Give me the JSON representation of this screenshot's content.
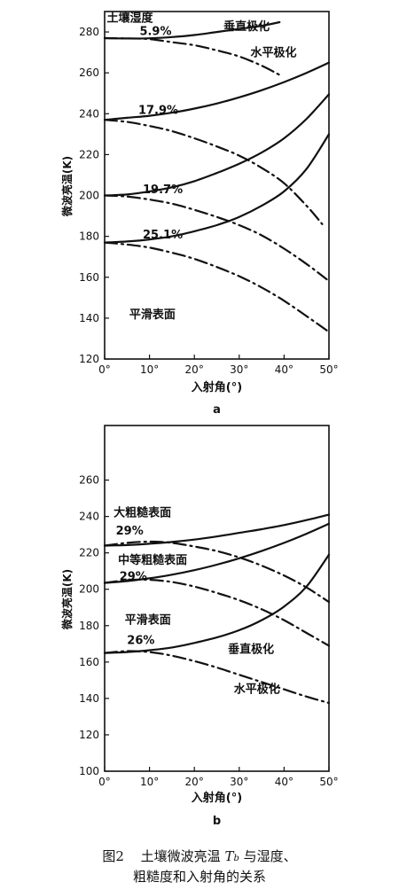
{
  "chart_data": [
    {
      "panel_label": "a",
      "type": "line",
      "xlabel": "入射角(°)",
      "ylabel": "微波亮温(K)",
      "xlim": [
        0,
        50
      ],
      "ylim": [
        120,
        290
      ],
      "xticks": [
        0,
        10,
        20,
        30,
        40,
        50
      ],
      "xtick_labels": [
        "0°",
        "10°",
        "20°",
        "30°",
        "40°",
        "50°"
      ],
      "yticks": [
        120,
        140,
        160,
        180,
        200,
        220,
        240,
        260,
        280
      ],
      "ytick_labels": [
        "120",
        "140",
        "160",
        "180",
        "200",
        "220",
        "240",
        "260",
        "280"
      ],
      "grid": false,
      "annotations": [
        {
          "text": "土壤湿度",
          "x": 0.5,
          "y": 285
        },
        {
          "text": "垂直极化",
          "x": 26.5,
          "y": 281
        },
        {
          "text": "水平极化",
          "x": 32.5,
          "y": 268
        },
        {
          "text": "5.9%",
          "x": 7.8,
          "y": 278.5
        },
        {
          "text": "17.9%",
          "x": 7.5,
          "y": 240
        },
        {
          "text": "19.7%",
          "x": 8.5,
          "y": 201
        },
        {
          "text": "25.1%",
          "x": 8.5,
          "y": 179
        },
        {
          "text": "平滑表面",
          "x": 5.5,
          "y": 140
        }
      ],
      "series": [
        {
          "style": "solid",
          "x": [
            0,
            5,
            10,
            15,
            20,
            25,
            30,
            35,
            39
          ],
          "y": [
            277,
            276.8,
            276.9,
            277.5,
            278.5,
            280,
            281.5,
            283,
            284.8
          ]
        },
        {
          "style": "dashdot",
          "x": [
            0,
            5,
            10,
            15,
            20,
            25,
            30,
            35,
            39
          ],
          "y": [
            277,
            276.8,
            276.5,
            275,
            273.5,
            271,
            268,
            263.5,
            259
          ]
        },
        {
          "style": "solid",
          "x": [
            0,
            5,
            10,
            15,
            20,
            25,
            30,
            35,
            40,
            45,
            50
          ],
          "y": [
            237,
            238,
            239,
            240.5,
            242.5,
            245,
            248,
            251.5,
            255.5,
            260,
            265
          ]
        },
        {
          "style": "dashdot",
          "x": [
            0,
            5,
            10,
            15,
            20,
            25,
            30,
            35,
            40,
            45,
            48.5
          ],
          "y": [
            237,
            236,
            234,
            231.5,
            228,
            224,
            219.5,
            213.5,
            206,
            195,
            186
          ]
        },
        {
          "style": "solid",
          "x": [
            0,
            5,
            10,
            15,
            20,
            25,
            30,
            35,
            40,
            45,
            50
          ],
          "y": [
            200,
            200.5,
            202,
            204,
            207,
            211,
            215.5,
            221,
            228,
            237.5,
            249.5
          ]
        },
        {
          "style": "dashdot",
          "x": [
            0,
            5,
            10,
            15,
            20,
            25,
            30,
            35,
            40,
            45,
            49.5
          ],
          "y": [
            200,
            199.5,
            198,
            196,
            193,
            189.5,
            185.5,
            180.5,
            174,
            166.5,
            159
          ]
        },
        {
          "style": "solid",
          "x": [
            0,
            5,
            10,
            15,
            20,
            25,
            30,
            35,
            40,
            45,
            50
          ],
          "y": [
            177,
            177.5,
            178.5,
            180,
            182.5,
            185.5,
            189.5,
            195,
            202,
            213,
            230
          ]
        },
        {
          "style": "dashdot",
          "x": [
            0,
            5,
            10,
            15,
            20,
            25,
            30,
            35,
            40,
            45,
            49.5
          ],
          "y": [
            177,
            176,
            174.5,
            172,
            169,
            165,
            160.5,
            155,
            148.5,
            141,
            134
          ]
        }
      ]
    },
    {
      "panel_label": "b",
      "type": "line",
      "xlabel": "入射角(°)",
      "ylabel": "微波亮温(K)",
      "xlim": [
        0,
        50
      ],
      "ylim": [
        100,
        290
      ],
      "xticks": [
        0,
        10,
        20,
        30,
        40,
        50
      ],
      "xtick_labels": [
        "0°",
        "10°",
        "20°",
        "30°",
        "40°",
        "50°"
      ],
      "yticks": [
        100,
        120,
        140,
        160,
        180,
        200,
        220,
        240,
        260
      ],
      "ytick_labels": [
        "100",
        "120",
        "140",
        "160",
        "180",
        "200",
        "220",
        "240",
        "260"
      ],
      "grid": false,
      "annotations": [
        {
          "text": "大粗糙表面",
          "x": 2,
          "y": 240
        },
        {
          "text": "29%",
          "x": 2.5,
          "y": 230
        },
        {
          "text": "中等粗糙表面",
          "x": 3,
          "y": 214
        },
        {
          "text": "29%",
          "x": 3.3,
          "y": 205
        },
        {
          "text": "平滑表面",
          "x": 4.5,
          "y": 181
        },
        {
          "text": "26%",
          "x": 5,
          "y": 170
        },
        {
          "text": "垂直极化",
          "x": 27.5,
          "y": 165
        },
        {
          "text": "水平极化",
          "x": 28.8,
          "y": 143
        }
      ],
      "series": [
        {
          "style": "solid",
          "x": [
            0,
            5,
            10,
            15,
            20,
            25,
            30,
            35,
            40,
            45,
            50
          ],
          "y": [
            224,
            224.3,
            225,
            226,
            227.3,
            229,
            231,
            233,
            235.3,
            238,
            241
          ]
        },
        {
          "style": "dashdot",
          "x": [
            0,
            5,
            10,
            15,
            20,
            25,
            30,
            35,
            40,
            45,
            50
          ],
          "y": [
            224,
            225.5,
            226.2,
            225.5,
            223.5,
            221,
            217.5,
            213,
            207.5,
            201,
            193
          ]
        },
        {
          "style": "solid",
          "x": [
            0,
            5,
            10,
            15,
            20,
            25,
            30,
            35,
            40,
            45,
            50
          ],
          "y": [
            203.5,
            204.5,
            206,
            208,
            210.5,
            213.5,
            217,
            221,
            225.5,
            230.5,
            236
          ]
        },
        {
          "style": "dashdot",
          "x": [
            0,
            5,
            10,
            15,
            20,
            25,
            30,
            35,
            40,
            45,
            50
          ],
          "y": [
            203.5,
            205,
            205.2,
            204,
            201.5,
            198,
            194,
            189,
            183,
            176,
            169
          ]
        },
        {
          "style": "solid",
          "x": [
            0,
            5,
            10,
            15,
            20,
            25,
            30,
            35,
            40,
            45,
            50
          ],
          "y": [
            165,
            165.5,
            166.5,
            168,
            170.5,
            173.5,
            177.5,
            183,
            190.5,
            201.5,
            219
          ]
        },
        {
          "style": "dashdot",
          "x": [
            0,
            5,
            10,
            15,
            20,
            25,
            30,
            35,
            40,
            45,
            50
          ],
          "y": [
            165,
            166,
            165.5,
            163.5,
            160.5,
            157,
            153,
            149,
            145,
            141,
            137.5
          ]
        }
      ]
    }
  ],
  "caption": {
    "label": "图2",
    "line1_text": "土壤微波亮温",
    "symbol": "T",
    "symbol_sub": "b",
    "line1_tail": "与湿度、",
    "line2": "粗糙度和入射角的关系"
  }
}
